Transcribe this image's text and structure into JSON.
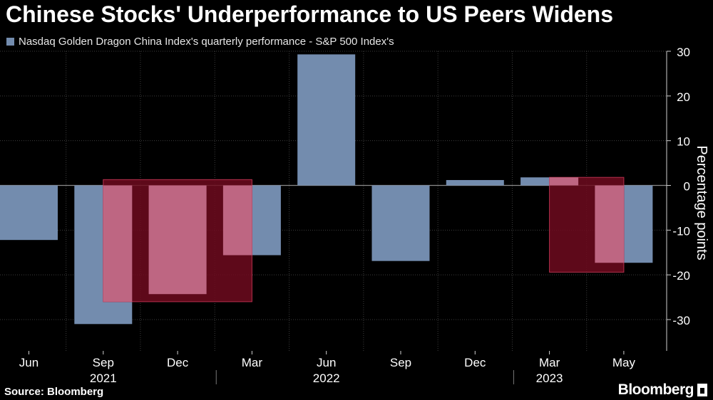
{
  "title": "Chinese Stocks' Underperformance to US Peers Widens",
  "source": "Source: Bloomberg",
  "brand": "Bloomberg",
  "colors": {
    "bar": "#738cae",
    "highlight_dark": "#6e0a1e",
    "highlight_light": "#c76e8b",
    "text": "#ffffff",
    "grid": "#3c3c3c"
  },
  "chart_data": {
    "type": "bar",
    "legend": "Nasdaq Golden Dragon China Index's quarterly performance - S&P 500 Index's",
    "ylabel": "Percentage points",
    "ylim": [
      -37,
      30
    ],
    "yticks": [
      30,
      20,
      10,
      0,
      -10,
      -20,
      -30
    ],
    "grid": true,
    "legend_position": "top-left",
    "categories": [
      "Jun 2021",
      "Sep 2021",
      "Dec 2021",
      "Mar 2022",
      "Jun 2022",
      "Sep 2022",
      "Dec 2022",
      "Mar 2023",
      "May 2023"
    ],
    "values": [
      -12.2,
      -31,
      -24.3,
      -15.6,
      29.3,
      -16.9,
      1.2,
      1.8,
      -17.3
    ],
    "x_tick_labels": [
      "Jun",
      "Sep",
      "Dec",
      "Mar",
      "Jun",
      "Sep",
      "Dec",
      "Mar",
      "May"
    ],
    "year_labels": [
      {
        "label": "2021",
        "under": "Sep 2021"
      },
      {
        "label": "2022",
        "under": "Jun 2022"
      },
      {
        "label": "2023",
        "under": "Mar 2023"
      }
    ],
    "highlights": [
      {
        "from": "Sep 2021",
        "to": "Mar 2022",
        "top": 1.3,
        "bottom": -26
      },
      {
        "from": "Mar 2023",
        "to": "May 2023",
        "top": 1.8,
        "bottom": -19.4
      }
    ]
  }
}
